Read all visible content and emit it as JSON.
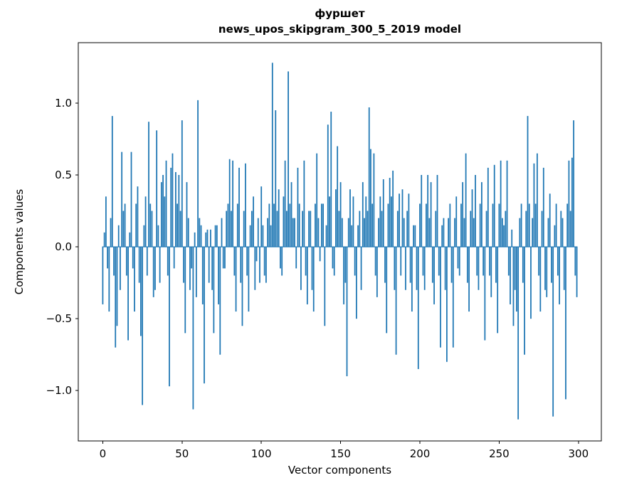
{
  "figure": {
    "title_line1": "фуршет",
    "title_line2": "news_upos_skipgram_300_5_2019 model",
    "xlabel": "Vector components",
    "ylabel": "Components values"
  },
  "chart_data": {
    "type": "bar",
    "title": "фуршет — news_upos_skipgram_300_5_2019 model",
    "xlabel": "Vector components",
    "ylabel": "Components values",
    "legend": null,
    "grid": false,
    "bar_color": "#1f77b4",
    "x_start": 0,
    "xlim": [
      -15.45,
      314.45
    ],
    "ylim": [
      -1.35,
      1.42
    ],
    "xticks": [
      0,
      50,
      100,
      150,
      200,
      250,
      300
    ],
    "xtick_labels": [
      "0",
      "50",
      "100",
      "150",
      "200",
      "250",
      "300"
    ],
    "yticks": [
      -1.0,
      -0.5,
      0.0,
      0.5,
      1.0
    ],
    "ytick_labels": [
      "−1.0",
      "−0.5",
      "0.0",
      "0.5",
      "1.0"
    ],
    "values": [
      -0.4,
      0.1,
      0.35,
      -0.15,
      -0.45,
      0.2,
      0.91,
      -0.2,
      -0.7,
      -0.55,
      0.15,
      -0.3,
      0.66,
      0.25,
      0.3,
      -0.2,
      -0.65,
      0.1,
      0.66,
      -0.15,
      -0.45,
      0.3,
      0.42,
      -0.25,
      -0.62,
      -1.1,
      0.15,
      0.35,
      -0.2,
      0.87,
      0.3,
      0.25,
      -0.35,
      -0.3,
      0.81,
      0.15,
      -0.25,
      0.45,
      0.5,
      0.35,
      0.6,
      -0.2,
      -0.97,
      0.55,
      0.65,
      -0.15,
      0.52,
      0.3,
      0.5,
      0.25,
      0.88,
      -0.25,
      -0.6,
      0.45,
      0.2,
      -0.3,
      -0.15,
      -1.13,
      0.1,
      -0.35,
      1.02,
      0.2,
      0.15,
      -0.4,
      -0.95,
      0.1,
      0.12,
      -0.25,
      0.12,
      -0.3,
      -0.6,
      0.15,
      0.15,
      -0.4,
      -0.75,
      0.2,
      -0.15,
      -0.15,
      0.25,
      0.3,
      0.61,
      0.25,
      0.6,
      -0.2,
      -0.45,
      0.3,
      0.55,
      -0.25,
      -0.55,
      0.25,
      0.58,
      -0.2,
      -0.45,
      0.15,
      0.25,
      0.35,
      -0.3,
      -0.1,
      0.2,
      -0.25,
      0.42,
      0.15,
      -0.2,
      -0.25,
      0.2,
      0.3,
      0.15,
      1.28,
      0.3,
      0.95,
      0.25,
      0.4,
      -0.15,
      -0.2,
      0.35,
      0.6,
      0.25,
      1.22,
      0.3,
      0.45,
      0.2,
      0.2,
      -0.15,
      0.55,
      0.3,
      -0.3,
      0.25,
      0.6,
      -0.2,
      -0.4,
      0.25,
      0.25,
      -0.3,
      -0.45,
      0.3,
      0.65,
      0.2,
      -0.1,
      0.3,
      0.3,
      -0.55,
      0.15,
      0.85,
      0.35,
      0.94,
      -0.15,
      -0.2,
      0.4,
      0.7,
      0.25,
      0.45,
      0.2,
      -0.4,
      -0.25,
      -0.9,
      0.2,
      0.4,
      0.15,
      0.35,
      -0.2,
      -0.5,
      0.15,
      0.25,
      -0.3,
      0.45,
      0.2,
      0.35,
      0.25,
      0.97,
      0.68,
      0.3,
      0.65,
      -0.2,
      -0.35,
      0.2,
      0.35,
      0.25,
      0.47,
      -0.25,
      -0.6,
      0.3,
      0.48,
      0.35,
      0.53,
      -0.3,
      -0.75,
      0.25,
      0.37,
      -0.2,
      0.4,
      0.2,
      -0.3,
      0.25,
      0.37,
      -0.25,
      -0.45,
      0.15,
      0.15,
      -0.3,
      -0.85,
      0.3,
      0.5,
      -0.2,
      -0.3,
      0.3,
      0.5,
      0.2,
      0.45,
      -0.25,
      -0.4,
      0.25,
      0.5,
      -0.2,
      -0.7,
      0.15,
      0.2,
      -0.3,
      -0.8,
      0.2,
      0.3,
      -0.25,
      -0.7,
      0.2,
      0.35,
      -0.15,
      -0.2,
      0.3,
      0.45,
      0.2,
      0.65,
      -0.25,
      -0.45,
      0.25,
      0.4,
      0.2,
      0.5,
      -0.2,
      -0.3,
      0.3,
      0.45,
      -0.2,
      -0.65,
      0.25,
      0.55,
      -0.2,
      -0.35,
      0.3,
      0.57,
      -0.25,
      -0.6,
      0.3,
      0.6,
      0.2,
      0.15,
      0.25,
      0.6,
      -0.2,
      -0.4,
      0.12,
      -0.55,
      -0.3,
      -0.45,
      -1.2,
      0.2,
      0.3,
      -0.25,
      -0.75,
      0.25,
      0.91,
      0.3,
      -0.5,
      0.2,
      0.58,
      0.3,
      0.65,
      -0.2,
      -0.45,
      0.25,
      0.55,
      -0.3,
      -0.35,
      0.2,
      0.37,
      -0.25,
      -1.18,
      0.15,
      0.3,
      -0.2,
      -0.4,
      0.25,
      0.2,
      -0.3,
      -1.06,
      0.3,
      0.6,
      0.25,
      0.62,
      0.88,
      -0.2,
      -0.35
    ]
  }
}
